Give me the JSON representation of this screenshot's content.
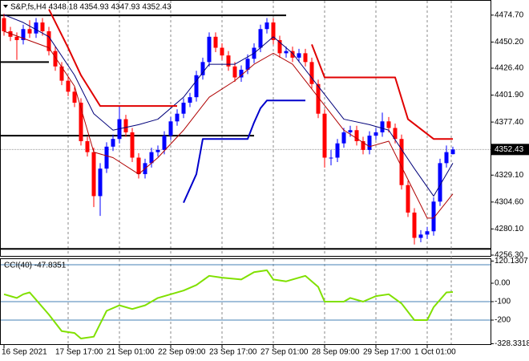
{
  "chart_data": [
    {
      "type": "candlestick",
      "title": "S&P,fs,H4 4348.18 4354.93 4347.93 4352.43",
      "up_color": "#0000ff",
      "down_color": "#ff0000",
      "open": [
        4472,
        4460,
        4455,
        4452,
        4462,
        4458,
        4468,
        4460,
        4442,
        4428,
        4415,
        4405,
        4395,
        4360,
        4350,
        4310,
        4335,
        4355,
        4362,
        4380,
        4368,
        4345,
        4330,
        4340,
        4350,
        4352,
        4365,
        4378,
        4385,
        4395,
        4400,
        4420,
        4432,
        4455,
        4445,
        4438,
        4428,
        4418,
        4425,
        4435,
        4445,
        4462,
        4468,
        4452,
        4440,
        4442,
        4436,
        4440,
        4432,
        4412,
        4385,
        4345,
        4345,
        4358,
        4368,
        4370,
        4360,
        4352,
        4365,
        4368,
        4378,
        4372,
        4362,
        4320,
        4295,
        4272,
        4275,
        4278,
        4305,
        4340,
        4348.18
      ],
      "high": [
        4476,
        4464,
        4459,
        4466,
        4470,
        4472,
        4472,
        4464,
        4446,
        4432,
        4419,
        4409,
        4399,
        4364,
        4354,
        4340,
        4359,
        4366,
        4392,
        4384,
        4372,
        4349,
        4344,
        4354,
        4356,
        4369,
        4382,
        4389,
        4399,
        4404,
        4424,
        4436,
        4459,
        4459,
        4449,
        4442,
        4432,
        4429,
        4439,
        4449,
        4466,
        4472,
        4472,
        4456,
        4446,
        4446,
        4444,
        4444,
        4436,
        4416,
        4389,
        4352,
        4362,
        4372,
        4374,
        4374,
        4364,
        4369,
        4372,
        4386,
        4382,
        4376,
        4366,
        4324,
        4299,
        4279,
        4282,
        4309,
        4344,
        4356,
        4354.93
      ],
      "low": [
        4456,
        4451,
        4434,
        4448,
        4454,
        4454,
        4456,
        4438,
        4424,
        4411,
        4401,
        4391,
        4356,
        4346,
        4300,
        4292,
        4331,
        4351,
        4358,
        4364,
        4341,
        4326,
        4326,
        4336,
        4346,
        4348,
        4361,
        4374,
        4381,
        4391,
        4396,
        4416,
        4428,
        4441,
        4434,
        4424,
        4414,
        4414,
        4421,
        4431,
        4441,
        4458,
        4448,
        4436,
        4436,
        4432,
        4432,
        4428,
        4408,
        4381,
        4336,
        4338,
        4341,
        4354,
        4364,
        4356,
        4348,
        4348,
        4361,
        4364,
        4368,
        4358,
        4316,
        4291,
        4266,
        4268,
        4271,
        4274,
        4301,
        4336,
        4347.93
      ],
      "close": [
        4460,
        4455,
        4452,
        4462,
        4458,
        4468,
        4460,
        4442,
        4428,
        4415,
        4405,
        4395,
        4360,
        4350,
        4310,
        4335,
        4355,
        4362,
        4380,
        4368,
        4345,
        4330,
        4340,
        4350,
        4352,
        4365,
        4378,
        4385,
        4395,
        4400,
        4420,
        4432,
        4455,
        4445,
        4438,
        4428,
        4418,
        4425,
        4435,
        4445,
        4462,
        4468,
        4452,
        4440,
        4442,
        4436,
        4440,
        4432,
        4412,
        4385,
        4345,
        4345,
        4358,
        4368,
        4370,
        4360,
        4352,
        4365,
        4368,
        4378,
        4372,
        4362,
        4320,
        4295,
        4272,
        4275,
        4278,
        4305,
        4340,
        4350,
        4352.43
      ],
      "series": [
        {
          "color": "#00007a",
          "width": 1,
          "x": [
            0,
            3,
            7,
            11,
            14,
            17,
            21,
            24,
            28,
            32,
            36,
            39,
            42,
            45,
            49,
            53,
            57,
            60,
            64,
            67,
            70
          ],
          "values": [
            4475,
            4468,
            4455,
            4420,
            4385,
            4370,
            4375,
            4380,
            4400,
            4430,
            4430,
            4440,
            4455,
            4440,
            4410,
            4380,
            4375,
            4370,
            4335,
            4310,
            4340
          ]
        },
        {
          "color": "#b00000",
          "width": 1,
          "x": [
            0,
            7,
            11,
            14,
            17,
            21,
            24,
            28,
            32,
            36,
            39,
            42,
            45,
            49,
            53,
            57,
            60,
            63,
            66,
            67,
            70
          ],
          "values": [
            4460,
            4445,
            4410,
            4350,
            4345,
            4330,
            4345,
            4370,
            4400,
            4415,
            4430,
            4440,
            4430,
            4400,
            4370,
            4355,
            4360,
            4325,
            4290,
            4290,
            4312
          ]
        },
        {
          "color": "#e00000",
          "width": 2,
          "x": [
            7,
            10,
            12,
            15,
            27,
            38,
            48,
            50,
            61,
            63,
            67,
            70
          ],
          "values": [
            4480,
            4445,
            4420,
            4392,
            4392,
            null,
            4448,
            4418,
            4418,
            4380,
            4362,
            4362
          ]
        },
        {
          "color": "#0000cc",
          "width": 2,
          "x": [
            28,
            30,
            31,
            38,
            39,
            40,
            41,
            47
          ],
          "values": [
            4304,
            4330,
            4362,
            4362,
            4377,
            4390,
            4397,
            4397
          ]
        }
      ],
      "levels": [
        {
          "value": 4474.5,
          "x_end": 44
        },
        {
          "value": 4432,
          "x_end": 7
        },
        {
          "value": 4365,
          "x_end": 39
        },
        {
          "value": 4262,
          "x_end": 76
        }
      ],
      "last_price": 4352.43,
      "ylim": [
        4256.3,
        4487.0
      ],
      "yticks": [
        {
          "value": 4474.7,
          "label": "4474.70"
        },
        {
          "value": 4450.2,
          "label": "4450.20"
        },
        {
          "value": 4426.4,
          "label": "4426.40"
        },
        {
          "value": 4401.9,
          "label": "4401.90"
        },
        {
          "value": 4377.4,
          "label": "4377.40"
        },
        {
          "value": 4329.1,
          "label": "4329.10"
        },
        {
          "value": 4304.6,
          "label": "4304.60"
        },
        {
          "value": 4280.1,
          "label": "4280.10"
        },
        {
          "value": 4256.3,
          "label": "4256.30"
        }
      ],
      "xticks": [
        {
          "value": 0,
          "label": "16 Sep 2021"
        },
        {
          "value": 10,
          "label": "17 Sep 17:00"
        },
        {
          "value": 18,
          "label": "21 Sep 01:00"
        },
        {
          "value": 26,
          "label": "22 Sep 09:00"
        },
        {
          "value": 34,
          "label": "23 Sep 17:00"
        },
        {
          "value": 42,
          "label": "27 Sep 01:00"
        },
        {
          "value": 50,
          "label": "28 Sep 09:00"
        },
        {
          "value": 58,
          "label": "29 Sep 17:00"
        },
        {
          "value": 66,
          "label": "1 Oct 01:00"
        }
      ]
    },
    {
      "type": "line",
      "title": "CCI(40) -47.8351",
      "series": [
        {
          "color": "#80e000",
          "width": 2,
          "x": [
            0,
            1,
            2,
            3,
            4,
            5,
            7,
            9,
            11,
            12,
            14,
            15,
            16,
            18,
            20,
            22,
            24,
            26,
            28,
            30,
            32,
            34,
            37,
            39,
            41,
            42,
            44,
            47,
            49,
            50,
            53,
            54,
            56,
            58,
            60,
            62,
            64,
            66,
            67,
            69,
            70
          ],
          "values": [
            -60,
            -70,
            -80,
            -60,
            -50,
            -90,
            -170,
            -260,
            -270,
            -300,
            -290,
            -220,
            -150,
            -120,
            -140,
            -120,
            -80,
            -60,
            -40,
            -10,
            40,
            30,
            20,
            60,
            70,
            20,
            10,
            40,
            -20,
            -100,
            -100,
            -80,
            -100,
            -70,
            -60,
            -110,
            -200,
            -200,
            -130,
            -50,
            -47.8351
          ]
        }
      ],
      "levels": [
        100,
        -100,
        -200
      ],
      "level_color": "#4682b4",
      "ylim": [
        -328.3318,
        120.1307
      ],
      "yticks": [
        120.1307,
        {
          "value": 0,
          "label": "0.00"
        },
        -100,
        -200,
        -328.3318
      ]
    }
  ]
}
